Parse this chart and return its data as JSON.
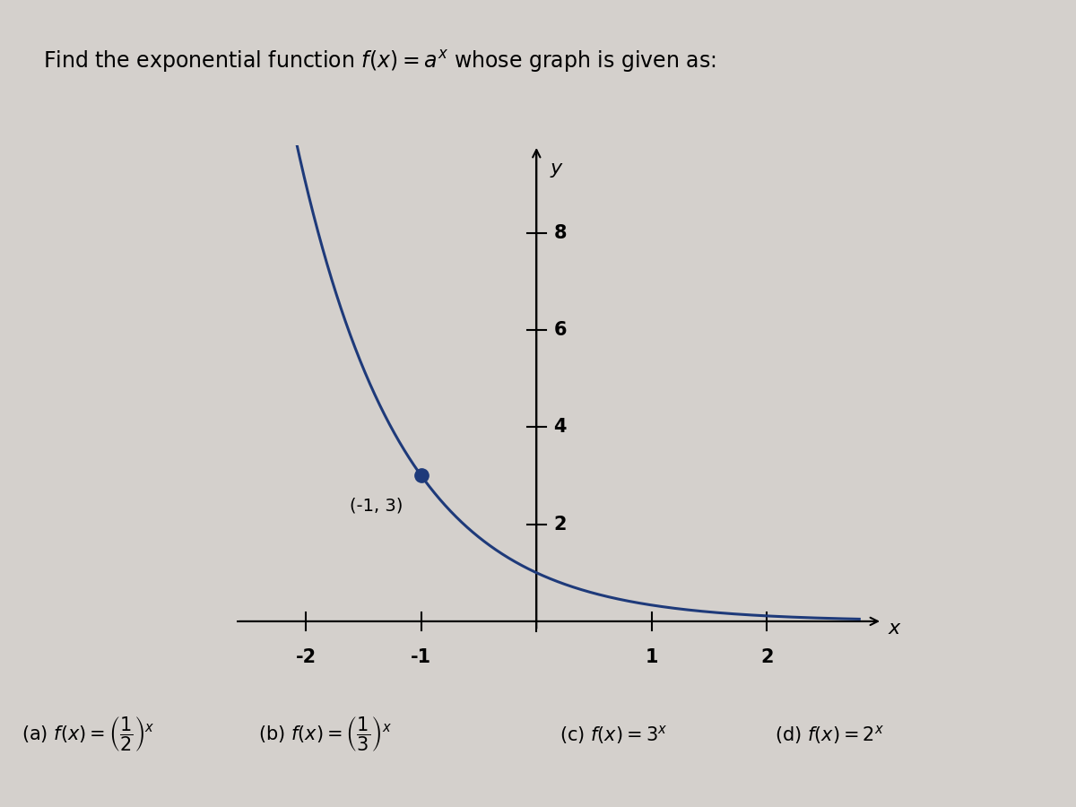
{
  "title_plain": "Find the exponential function ",
  "title_math": "$f(x)=a^x$",
  "title_plain2": " whose graph is given as:",
  "title_fontsize": 17,
  "bg_color": "#d4d0cc",
  "curve_color": "#1e3a7a",
  "point_color": "#1e3a7a",
  "point_x": -1,
  "point_y": 3,
  "point_label": "(-1, 3)",
  "xlim": [
    -2.6,
    3.0
  ],
  "ylim": [
    -0.5,
    9.8
  ],
  "xticks": [
    -2,
    -1,
    1,
    2
  ],
  "yticks": [
    2,
    4,
    6,
    8
  ],
  "xlabel": "x",
  "ylabel": "y",
  "base": 0.3333333333,
  "answer_a": "(a) $f(x)=\\left(\\dfrac{1}{2}\\right)^x$",
  "answer_b": "(b) $f(x)=\\left(\\dfrac{1}{3}\\right)^x$",
  "answer_c": "(c) $f(x)=3^x$",
  "answer_d": "(d) $f(x)=2^x$",
  "answer_fontsize": 15,
  "tick_fontsize": 15,
  "axis_label_fontsize": 16
}
